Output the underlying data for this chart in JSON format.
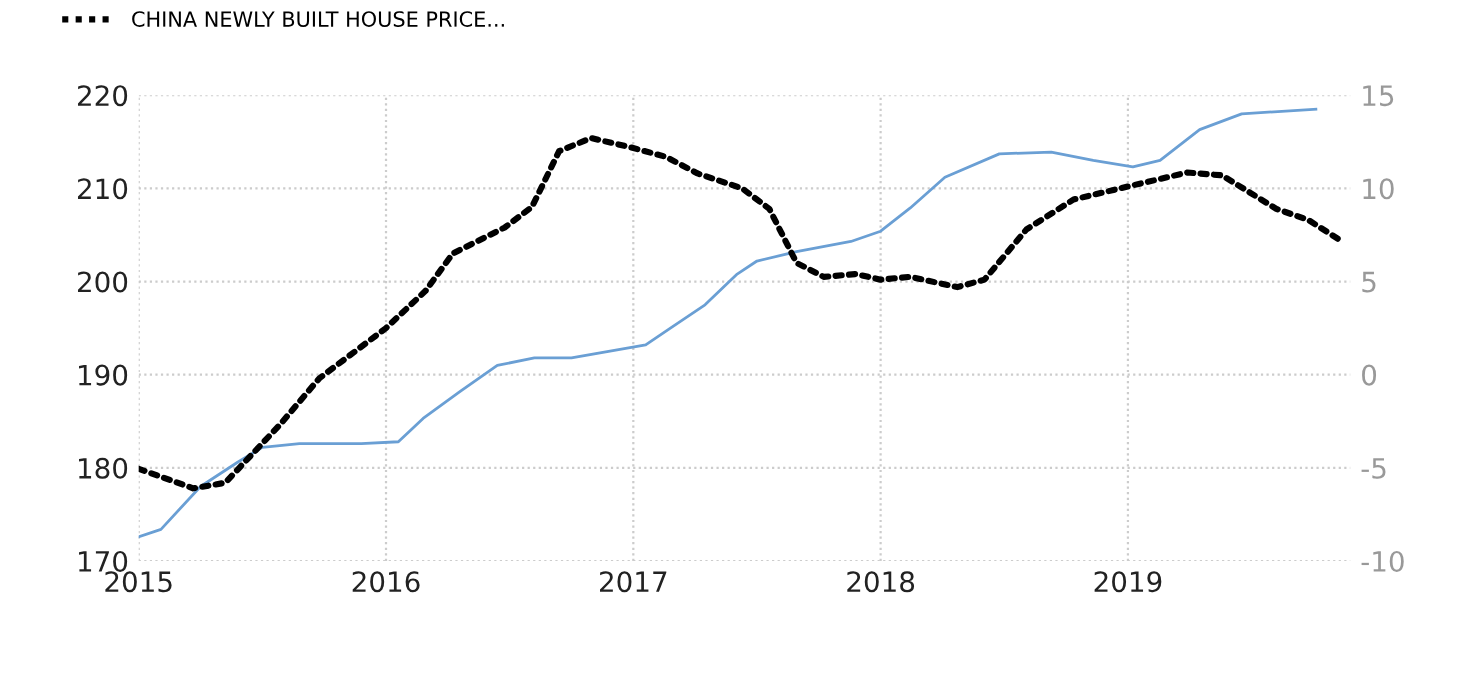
{
  "chart_data": {
    "type": "line",
    "xlim": [
      2015,
      2019.9
    ],
    "xticks": [
      2015,
      2016,
      2017,
      2018,
      2019
    ],
    "ylim": [
      170,
      220
    ],
    "yticks": [
      170,
      180,
      190,
      200,
      210,
      220
    ],
    "y2lim": [
      -10,
      15
    ],
    "y2ticks": [
      -10,
      -5,
      0,
      5,
      10,
      15
    ],
    "grid": true,
    "legend": "top left",
    "marker": "none",
    "series": [
      {
        "color": "#6a9fd4",
        "line_style": "solid",
        "x": [
          2015,
          2015.09,
          2015.25,
          2015.4,
          2015.5,
          2015.65,
          2015.9,
          2016.05,
          2016.15,
          2016.3,
          2016.45,
          2016.6,
          2016.75,
          2016.9,
          2017.05,
          2017.15,
          2017.29,
          2017.42,
          2017.5,
          2017.66,
          2017.88,
          2018,
          2018.12,
          2018.26,
          2018.48,
          2018.69,
          2018.86,
          2019.02,
          2019.13,
          2019.29,
          2019.46,
          2019.76
        ],
        "values": [
          172.6,
          173.4,
          178,
          180.6,
          182.2,
          182.6,
          182.6,
          182.8,
          185.3,
          188.2,
          191,
          191.8,
          191.8,
          192.5,
          193.2,
          195,
          197.5,
          200.8,
          202.2,
          203.2,
          204.3,
          205.4,
          207.9,
          211.2,
          213.7,
          213.9,
          213,
          212.3,
          213,
          216.3,
          218,
          218.5
        ]
      },
      {
        "name": "CHINA NEWLY BUILT HOUSE PRICE...",
        "color": "#000000",
        "line_style": "dotted",
        "axis": "y2",
        "x": [
          2015,
          2015.22,
          2015.35,
          2015.57,
          2015.73,
          2016,
          2016.16,
          2016.27,
          2016.48,
          2016.59,
          2016.7,
          2016.83,
          2016.99,
          2017.13,
          2017.26,
          2017.44,
          2017.55,
          2017.66,
          2017.77,
          2017.9,
          2018,
          2018.12,
          2018.31,
          2018.42,
          2018.59,
          2018.78,
          2019,
          2019.24,
          2019.38,
          2019.6,
          2019.73,
          2019.86
        ],
        "values": [
          -5.05,
          -6.1,
          -5.8,
          -2.7,
          -0.2,
          2.5,
          4.5,
          6.5,
          7.9,
          9,
          12,
          12.7,
          12.2,
          11.7,
          10.8,
          10,
          8.9,
          6,
          5.25,
          5.4,
          5.1,
          5.25,
          4.7,
          5.1,
          7.8,
          9.4,
          10.1,
          10.85,
          10.7,
          8.9,
          8.3,
          7.2
        ]
      }
    ]
  }
}
